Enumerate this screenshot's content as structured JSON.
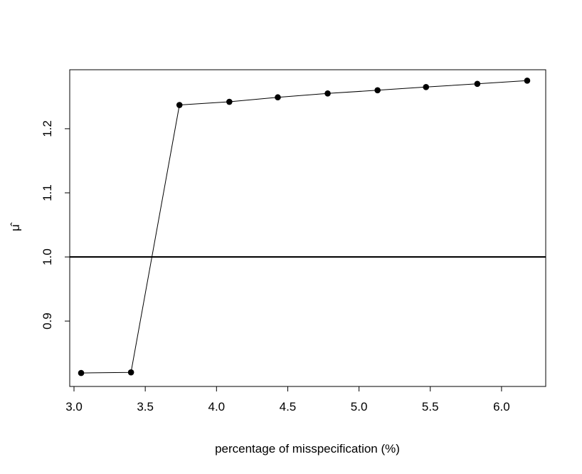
{
  "chart_data": {
    "type": "line",
    "title": "",
    "xlabel": "percentage of misspecification (%)",
    "ylabel": "μ̂",
    "xlim": [
      2.97,
      6.31
    ],
    "ylim": [
      0.798,
      1.292
    ],
    "x_ticks": [
      3.0,
      3.5,
      4.0,
      4.5,
      5.0,
      5.5,
      6.0
    ],
    "x_tick_labels": [
      "3.0",
      "3.5",
      "4.0",
      "4.5",
      "5.0",
      "5.5",
      "6.0"
    ],
    "y_ticks": [
      0.9,
      1.0,
      1.1,
      1.2
    ],
    "y_tick_labels": [
      "0.9",
      "1.0",
      "1.1",
      "1.2"
    ],
    "series": [
      {
        "x": [
          3.05,
          3.4,
          3.74,
          4.09,
          4.43,
          4.78,
          5.13,
          5.47,
          5.83,
          6.18
        ],
        "y": [
          0.819,
          0.82,
          1.237,
          1.242,
          1.249,
          1.255,
          1.26,
          1.265,
          1.27,
          1.275
        ],
        "marker": "filled-circle",
        "color": "#000000"
      }
    ],
    "reference_line": {
      "orientation": "horizontal",
      "y": 1.0,
      "color": "#000000"
    },
    "grid": false,
    "legend": "none"
  }
}
